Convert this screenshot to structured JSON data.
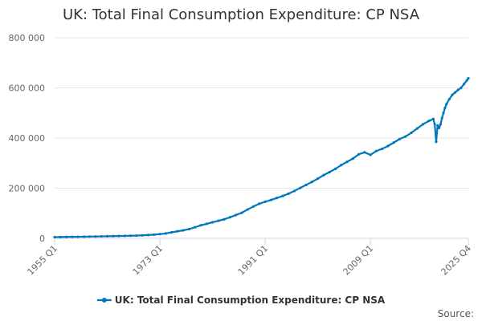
{
  "chart_data": {
    "type": "line",
    "title": "UK: Total Final Consumption Expenditure: CP NSA",
    "xlabel": "",
    "ylabel": "",
    "x_ticks": [
      "1955 Q1",
      "1973 Q1",
      "1991 Q1",
      "2009 Q1",
      "2025 Q4"
    ],
    "x_tick_positions": [
      1955.0,
      1973.0,
      1991.0,
      2009.0,
      2025.75
    ],
    "xlim": [
      1955.0,
      2025.75
    ],
    "ylim": [
      0,
      800000
    ],
    "y_ticks": [
      0,
      200000,
      400000,
      600000,
      800000
    ],
    "y_tick_labels": [
      "0",
      "200 000",
      "400 000",
      "600 000",
      "800 000"
    ],
    "grid": true,
    "legend_position": "bottom-center",
    "source_label": "Source:",
    "series": [
      {
        "name": "UK: Total Final Consumption Expenditure: CP NSA",
        "color": "#0077bb",
        "x": [
          1955.0,
          1956.0,
          1957.0,
          1958.0,
          1959.0,
          1960.0,
          1961.0,
          1962.0,
          1963.0,
          1964.0,
          1965.0,
          1966.0,
          1967.0,
          1968.0,
          1969.0,
          1970.0,
          1971.0,
          1972.0,
          1973.0,
          1974.0,
          1975.0,
          1976.0,
          1977.0,
          1978.0,
          1979.0,
          1980.0,
          1981.0,
          1982.0,
          1983.0,
          1984.0,
          1985.0,
          1986.0,
          1987.0,
          1988.0,
          1989.0,
          1990.0,
          1991.0,
          1992.0,
          1993.0,
          1994.0,
          1995.0,
          1996.0,
          1997.0,
          1998.0,
          1999.0,
          2000.0,
          2001.0,
          2002.0,
          2003.0,
          2004.0,
          2005.0,
          2006.0,
          2007.0,
          2008.0,
          2009.0,
          2010.0,
          2011.0,
          2012.0,
          2013.0,
          2014.0,
          2015.0,
          2016.0,
          2017.0,
          2018.0,
          2019.0,
          2019.75,
          2020.0,
          2020.25,
          2020.5,
          2020.75,
          2021.0,
          2021.25,
          2021.5,
          2021.75,
          2022.0,
          2022.5,
          2023.0,
          2023.5,
          2024.0,
          2024.5,
          2025.0,
          2025.5,
          2025.75
        ],
        "values": [
          5000,
          5300,
          5600,
          5900,
          6200,
          6600,
          7000,
          7400,
          7800,
          8300,
          8800,
          9300,
          9800,
          10400,
          11000,
          12000,
          13300,
          14800,
          17000,
          19500,
          24000,
          28000,
          32000,
          37000,
          44000,
          52000,
          58000,
          64000,
          70000,
          76000,
          84000,
          93000,
          102000,
          115000,
          127000,
          138000,
          146000,
          153000,
          161000,
          169000,
          178000,
          189000,
          201000,
          213000,
          225000,
          238000,
          252000,
          264000,
          277000,
          292000,
          305000,
          318000,
          335000,
          343000,
          333000,
          348000,
          357000,
          368000,
          382000,
          396000,
          406000,
          421000,
          438000,
          455000,
          468000,
          476000,
          455000,
          385000,
          450000,
          440000,
          455000,
          480000,
          500000,
          520000,
          535000,
          555000,
          572000,
          582000,
          592000,
          600000,
          615000,
          630000,
          638000
        ]
      }
    ]
  }
}
